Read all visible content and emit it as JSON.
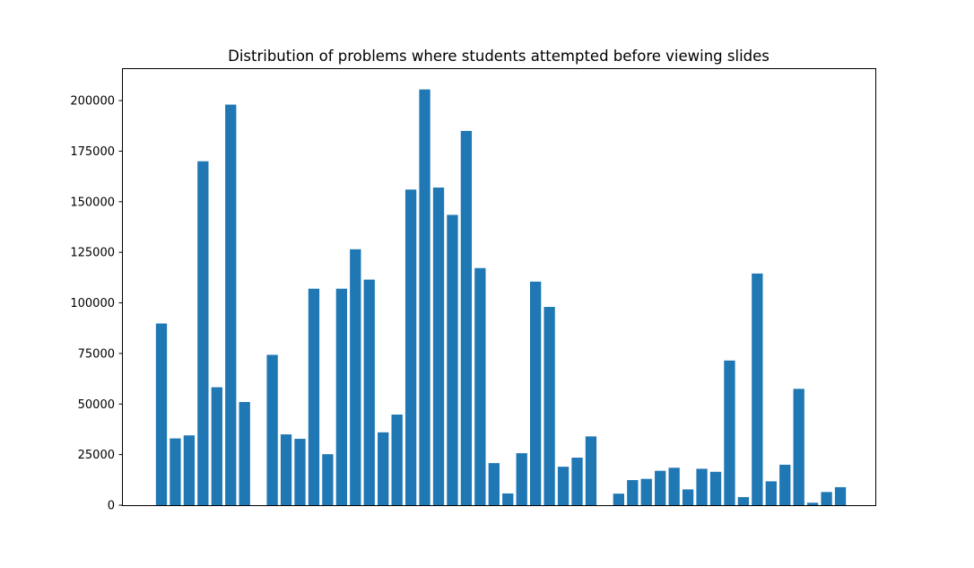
{
  "chart_data": {
    "type": "bar",
    "title": "Distribution of problems where students attempted before viewing slides",
    "xlabel": "",
    "ylabel": "",
    "x_ticks_visible": false,
    "ylim": [
      0,
      216000
    ],
    "yticks": [
      0,
      25000,
      50000,
      75000,
      100000,
      125000,
      150000,
      175000,
      200000
    ],
    "grid": false,
    "bar_color": "#1f77b4",
    "values": [
      89800,
      33000,
      34500,
      170000,
      58300,
      198000,
      51000,
      0,
      74300,
      35000,
      32800,
      107000,
      25200,
      107000,
      126500,
      111500,
      36000,
      44800,
      156000,
      205500,
      157000,
      143500,
      185000,
      117200,
      20800,
      5800,
      25700,
      110500,
      98000,
      19000,
      23500,
      34000,
      0,
      5700,
      12400,
      13000,
      17000,
      18500,
      7800,
      18000,
      16500,
      71500,
      4000,
      114500,
      11800,
      20000,
      57500,
      1200,
      6500,
      8900
    ]
  }
}
